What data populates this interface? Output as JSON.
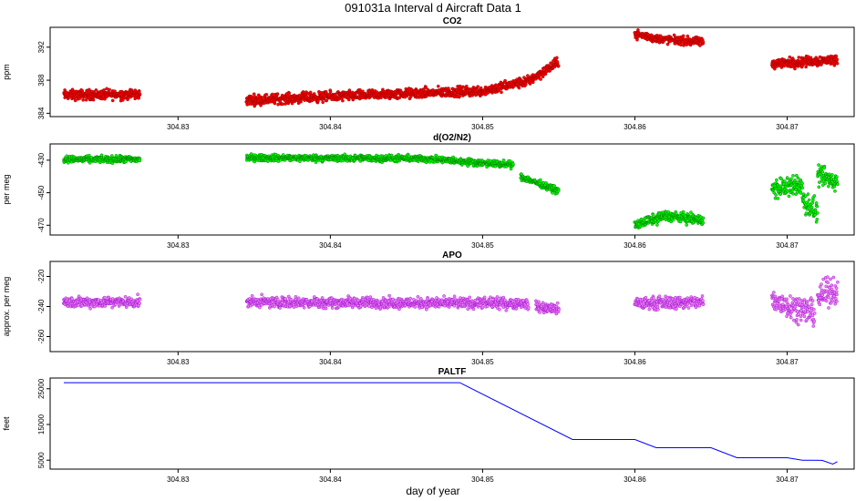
{
  "figure": {
    "main_title": "091031a   Interval d Aircraft Data 1",
    "xlabel": "day of year"
  },
  "chart_data": [
    {
      "id": "co2",
      "type": "scatter",
      "title": "CO2",
      "ylabel": "ppm",
      "color": "#ff0000",
      "edge_color": "#8b0000",
      "xlim": [
        304.8216,
        304.8744
      ],
      "ylim": [
        383.6,
        394.4
      ],
      "xticks": [
        304.83,
        304.84,
        304.85,
        304.86,
        304.87
      ],
      "yticks": [
        384,
        388,
        392
      ],
      "segments": [
        {
          "x": [
            304.8225,
            304.8275
          ],
          "y": [
            386.2,
            386.3
          ],
          "noise": 0.6
        },
        {
          "x": [
            304.8345,
            304.8425
          ],
          "y": [
            385.6,
            386.2
          ],
          "noise": 0.6
        },
        {
          "x": [
            304.8425,
            304.85
          ],
          "y": [
            386.2,
            386.7
          ],
          "noise": 0.6
        },
        {
          "x": [
            304.85,
            304.853
          ],
          "y": [
            386.7,
            387.9
          ],
          "noise": 0.6
        },
        {
          "x": [
            304.853,
            304.855
          ],
          "y": [
            387.9,
            390.2
          ],
          "noise": 0.6
        },
        {
          "x": [
            304.86,
            304.8615
          ],
          "y": [
            393.6,
            393.0
          ],
          "noise": 0.5
        },
        {
          "x": [
            304.8615,
            304.8645
          ],
          "y": [
            393.0,
            392.6
          ],
          "noise": 0.5
        },
        {
          "x": [
            304.869,
            304.8733
          ],
          "y": [
            390.0,
            390.5
          ],
          "noise": 0.6
        }
      ]
    },
    {
      "id": "o2n2",
      "type": "scatter",
      "title": "d(O2/N2)",
      "ylabel": "per meg",
      "color": "#00ff00",
      "edge_color": "#006400",
      "xlim": [
        304.8216,
        304.8744
      ],
      "ylim": [
        -476,
        -420
      ],
      "xticks": [
        304.83,
        304.84,
        304.85,
        304.86,
        304.87
      ],
      "yticks": [
        -430,
        -450,
        -470
      ],
      "segments": [
        {
          "x": [
            304.8225,
            304.8275
          ],
          "y": [
            -429.5,
            -429.5
          ],
          "noise": 2.0
        },
        {
          "x": [
            304.8345,
            304.846
          ],
          "y": [
            -428.5,
            -429.0
          ],
          "noise": 2.0
        },
        {
          "x": [
            304.846,
            304.852
          ],
          "y": [
            -429.0,
            -433.0
          ],
          "noise": 2.0
        },
        {
          "x": [
            304.8525,
            304.855
          ],
          "y": [
            -440.0,
            -449.0
          ],
          "noise": 2.0
        },
        {
          "x": [
            304.86,
            304.862
          ],
          "y": [
            -470.0,
            -464.0
          ],
          "noise": 3.0
        },
        {
          "x": [
            304.862,
            304.8645
          ],
          "y": [
            -464.0,
            -467.0
          ],
          "noise": 3.0
        },
        {
          "x": [
            304.869,
            304.871
          ],
          "y": [
            -448.0,
            -445.0
          ],
          "noise": 6.0
        },
        {
          "x": [
            304.871,
            304.872
          ],
          "y": [
            -455.0,
            -462.0
          ],
          "noise": 7.0
        },
        {
          "x": [
            304.872,
            304.8733
          ],
          "y": [
            -440.0,
            -443.0
          ],
          "noise": 6.0
        }
      ]
    },
    {
      "id": "apo",
      "type": "scatter",
      "title": "APO",
      "ylabel": "approx. per meg",
      "color": "#ee82ee",
      "edge_color": "#9400d3",
      "xlim": [
        304.8216,
        304.8744
      ],
      "ylim": [
        -270,
        -210
      ],
      "xticks": [
        304.83,
        304.84,
        304.85,
        304.86,
        304.87
      ],
      "yticks": [
        -220,
        -240,
        -260
      ],
      "segments": [
        {
          "x": [
            304.8225,
            304.8275
          ],
          "y": [
            -237.0,
            -237.0
          ],
          "noise": 3.5
        },
        {
          "x": [
            304.8345,
            304.853
          ],
          "y": [
            -237.0,
            -238.0
          ],
          "noise": 3.5
        },
        {
          "x": [
            304.8535,
            304.855
          ],
          "y": [
            -240.0,
            -242.0
          ],
          "noise": 3.5
        },
        {
          "x": [
            304.86,
            304.8645
          ],
          "y": [
            -238.0,
            -237.0
          ],
          "noise": 4.0
        },
        {
          "x": [
            304.869,
            304.8718
          ],
          "y": [
            -236.0,
            -244.0
          ],
          "noise": 8.0
        },
        {
          "x": [
            304.872,
            304.8733
          ],
          "y": [
            -234.0,
            -228.0
          ],
          "noise": 9.0
        }
      ]
    },
    {
      "id": "paltf",
      "type": "line",
      "title": "PALTF",
      "ylabel": "feet",
      "color": "#0000ff",
      "xlim": [
        304.8216,
        304.8744
      ],
      "ylim": [
        2500,
        28000
      ],
      "xticks": [
        304.83,
        304.84,
        304.85,
        304.86,
        304.87
      ],
      "yticks": [
        5000,
        15000,
        25000
      ],
      "x": [
        304.8225,
        304.8485,
        304.8559,
        304.86,
        304.8614,
        304.865,
        304.8667,
        304.87,
        304.871,
        304.8723,
        304.873,
        304.8733
      ],
      "y": [
        26700,
        26700,
        10800,
        10800,
        8500,
        8500,
        5700,
        5700,
        5000,
        4950,
        3900,
        4600
      ]
    }
  ]
}
